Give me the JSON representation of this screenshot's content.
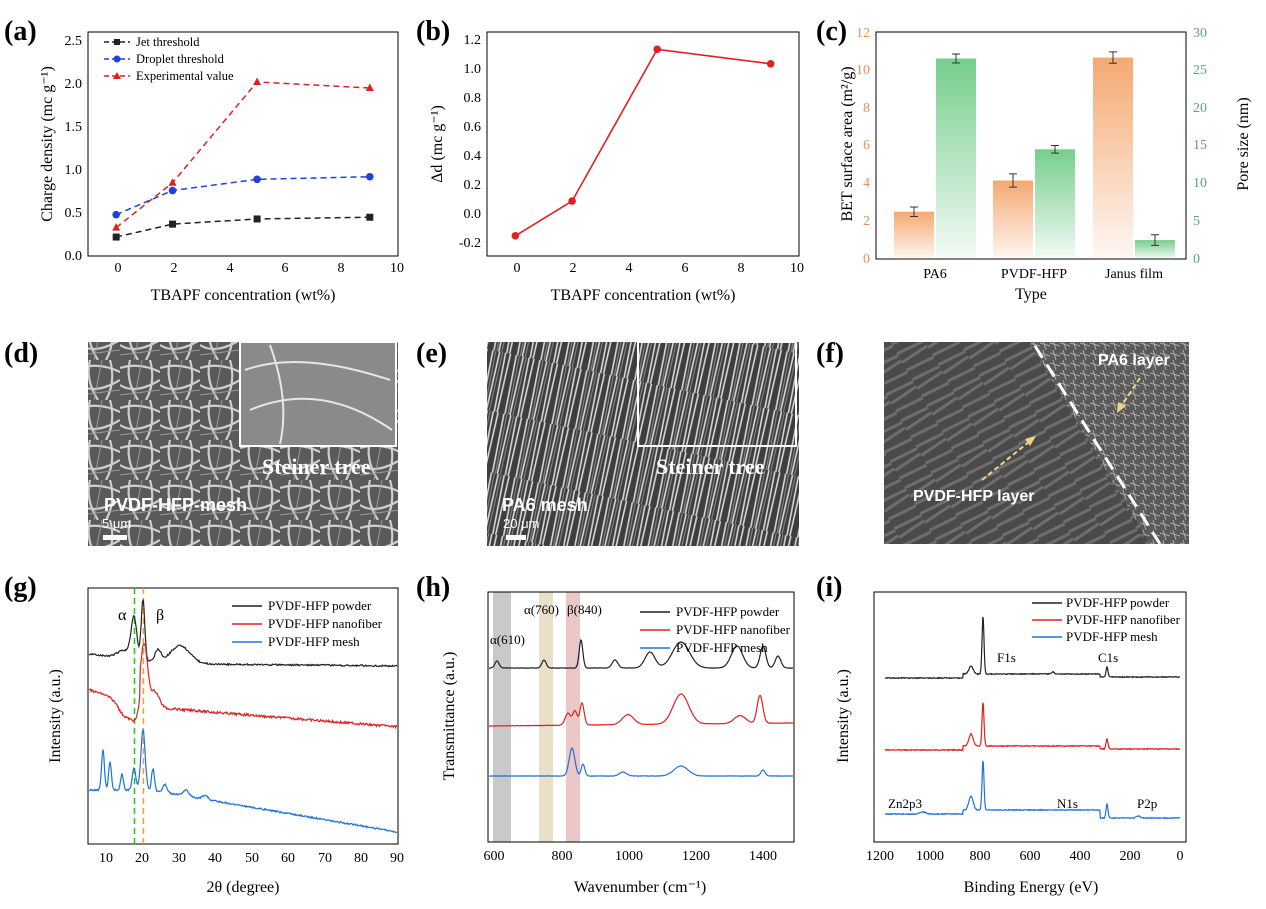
{
  "colors": {
    "black": "#222222",
    "red": "#e02020",
    "blue": "#1f3fe0",
    "spec_blue": "#1e73d8",
    "orange": "#f2a56b",
    "green": "#7ccf8f"
  },
  "charts": [
    {
      "id": "a",
      "type": "line",
      "label": "(a)",
      "xlabel": "TBAPF concentration (wt%)",
      "ylabel": "Charge density (mc g⁻¹)",
      "xlim": [
        -1,
        10
      ],
      "ylim": [
        0,
        2.6
      ],
      "xticks": [
        "0",
        "2",
        "4",
        "6",
        "8",
        "10"
      ],
      "yticks": [
        "0.0",
        "0.5",
        "1.0",
        "1.5",
        "2.0",
        "2.5"
      ],
      "x": [
        0,
        2,
        5,
        9
      ],
      "series": [
        {
          "name": "Jet threshold",
          "values": [
            0.22,
            0.37,
            0.43,
            0.45
          ]
        },
        {
          "name": "Droplet threshold",
          "values": [
            0.48,
            0.76,
            0.89,
            0.92
          ]
        },
        {
          "name": "Experimental value",
          "values": [
            0.33,
            0.85,
            2.02,
            1.95
          ]
        }
      ]
    },
    {
      "id": "b",
      "type": "line",
      "label": "(b)",
      "xlabel": "TBAPF concentration (wt%)",
      "ylabel": "Δd (mc g⁻¹)",
      "xlim": [
        -1,
        10
      ],
      "ylim": [
        -0.3,
        1.25
      ],
      "xticks": [
        "0",
        "2",
        "4",
        "6",
        "8",
        "10"
      ],
      "yticks": [
        "-0.2",
        "0.0",
        "0.2",
        "0.4",
        "0.6",
        "0.8",
        "1.0",
        "1.2"
      ],
      "x": [
        0,
        2,
        5,
        9
      ],
      "series": [
        {
          "name": "Δd",
          "values": [
            -0.16,
            0.08,
            1.13,
            1.03
          ]
        }
      ]
    },
    {
      "id": "c",
      "type": "bar",
      "label": "(c)",
      "xlabel": "Type",
      "ylabel": "BET surface area (m²/g)",
      "y2label": "Pore size (nm)",
      "categories": [
        "PA6",
        "PVDF-HFP",
        "Janus film"
      ],
      "ylim": [
        0,
        12
      ],
      "y2lim": [
        0,
        30
      ],
      "yticks": [
        "0",
        "2",
        "4",
        "6",
        "8",
        "10",
        "12"
      ],
      "y2ticks": [
        "0",
        "5",
        "10",
        "15",
        "20",
        "25",
        "30"
      ],
      "series": [
        {
          "name": "BET surface area",
          "axis": "left",
          "values": [
            2.5,
            4.15,
            10.65
          ],
          "errors": [
            0.25,
            0.35,
            0.3
          ]
        },
        {
          "name": "Pore size",
          "axis": "right",
          "values": [
            26.5,
            14.5,
            2.5
          ],
          "errors": [
            0.6,
            0.5,
            0.7
          ]
        }
      ]
    },
    {
      "id": "g",
      "type": "line",
      "label": "(g)",
      "xlabel": "2θ (degree)",
      "ylabel": "Intensity (a.u.)",
      "xlim": [
        5,
        90
      ],
      "xticks": [
        "10",
        "20",
        "30",
        "40",
        "50",
        "60",
        "70",
        "80",
        "90"
      ],
      "series": [
        {
          "name": "PVDF-HFP powder"
        },
        {
          "name": "PVDF-HFP nanofiber"
        },
        {
          "name": "PVDF-HFP mesh"
        }
      ],
      "annotations": [
        "α",
        "β"
      ]
    },
    {
      "id": "h",
      "type": "line",
      "label": "(h)",
      "xlabel": "Wavenumber (cm⁻¹)",
      "ylabel": "Transmittance (a.u.)",
      "xlim": [
        590,
        1500
      ],
      "xticks": [
        "600",
        "800",
        "1000",
        "1200",
        "1400"
      ],
      "series": [
        {
          "name": "PVDF-HFP powder"
        },
        {
          "name": "PVDF-HFP nanofiber"
        },
        {
          "name": "PVDF-HFP mesh"
        }
      ],
      "annotations": [
        "α(610)",
        "α(760)",
        "β(840)"
      ]
    },
    {
      "id": "i",
      "type": "line",
      "label": "(i)",
      "xlabel": "Binding Energy (eV)",
      "ylabel": "Intensity (a.u.)",
      "xlim": [
        1200,
        0
      ],
      "xticks": [
        "1200",
        "1000",
        "800",
        "600",
        "400",
        "200",
        "0"
      ],
      "series": [
        {
          "name": "PVDF-HFP powder"
        },
        {
          "name": "PVDF-HFP nanofiber"
        },
        {
          "name": "PVDF-HFP mesh"
        }
      ],
      "annotations": [
        "F1s",
        "C1s",
        "Zn2p3",
        "N1s",
        "P2p"
      ]
    }
  ],
  "images": {
    "d": {
      "label": "(d)",
      "caption": "PVDF-HFP-mesh",
      "inset": "Steiner tree",
      "scale": "5 μm"
    },
    "e": {
      "label": "(e)",
      "caption": "PA6 mesh",
      "inset": "Steiner tree",
      "scale": "20 μm"
    },
    "f": {
      "label": "(f)",
      "layer1": "PA6 layer",
      "layer2": "PVDF-HFP layer"
    }
  }
}
